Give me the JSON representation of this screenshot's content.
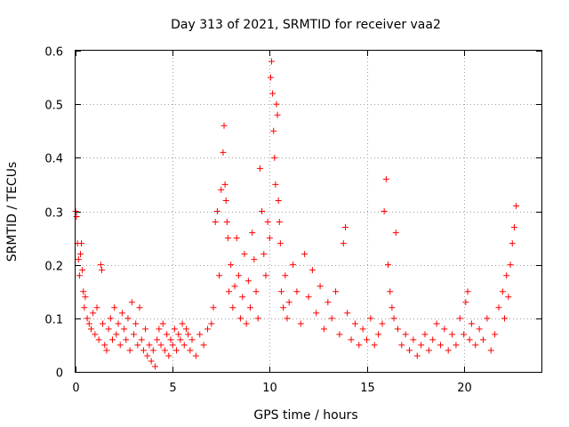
{
  "chart_data": {
    "type": "scatter",
    "title": "Day 313 of 2021, SRMTID for receiver vaa2",
    "xlabel": "GPS time / hours",
    "ylabel": "SRMTID / TECUs",
    "xlim": [
      0,
      24
    ],
    "ylim": [
      0,
      0.6
    ],
    "xticks": [
      0,
      5,
      10,
      15,
      20
    ],
    "xtick_labels": [
      "0",
      "5",
      "10",
      "15",
      "20"
    ],
    "yticks": [
      0,
      0.1,
      0.2,
      0.3,
      0.4,
      0.5,
      0.6
    ],
    "ytick_labels": [
      "0",
      "0.1",
      "0.2",
      "0.3",
      "0.4",
      "0.5",
      "0.6"
    ],
    "grid": true,
    "marker": "+",
    "color": "#ff0000",
    "series": [
      {
        "name": "SRMTID",
        "points": [
          [
            0.0,
            0.3
          ],
          [
            0.05,
            0.29
          ],
          [
            0.1,
            0.24
          ],
          [
            0.15,
            0.21
          ],
          [
            0.2,
            0.18
          ],
          [
            0.25,
            0.22
          ],
          [
            0.3,
            0.24
          ],
          [
            0.35,
            0.19
          ],
          [
            0.4,
            0.15
          ],
          [
            0.45,
            0.12
          ],
          [
            0.5,
            0.14
          ],
          [
            0.6,
            0.1
          ],
          [
            0.7,
            0.09
          ],
          [
            0.8,
            0.08
          ],
          [
            0.9,
            0.11
          ],
          [
            1.0,
            0.07
          ],
          [
            1.1,
            0.12
          ],
          [
            1.2,
            0.06
          ],
          [
            1.3,
            0.2
          ],
          [
            1.35,
            0.19
          ],
          [
            1.4,
            0.09
          ],
          [
            1.5,
            0.05
          ],
          [
            1.6,
            0.04
          ],
          [
            1.7,
            0.08
          ],
          [
            1.8,
            0.1
          ],
          [
            1.9,
            0.06
          ],
          [
            2.0,
            0.12
          ],
          [
            2.1,
            0.07
          ],
          [
            2.2,
            0.09
          ],
          [
            2.3,
            0.05
          ],
          [
            2.4,
            0.11
          ],
          [
            2.5,
            0.08
          ],
          [
            2.6,
            0.06
          ],
          [
            2.7,
            0.1
          ],
          [
            2.8,
            0.04
          ],
          [
            2.9,
            0.13
          ],
          [
            3.0,
            0.07
          ],
          [
            3.1,
            0.09
          ],
          [
            3.2,
            0.05
          ],
          [
            3.3,
            0.12
          ],
          [
            3.4,
            0.06
          ],
          [
            3.5,
            0.04
          ],
          [
            3.6,
            0.08
          ],
          [
            3.7,
            0.03
          ],
          [
            3.8,
            0.05
          ],
          [
            3.9,
            0.02
          ],
          [
            4.0,
            0.04
          ],
          [
            4.1,
            0.01
          ],
          [
            4.2,
            0.06
          ],
          [
            4.3,
            0.08
          ],
          [
            4.4,
            0.05
          ],
          [
            4.5,
            0.09
          ],
          [
            4.6,
            0.04
          ],
          [
            4.7,
            0.07
          ],
          [
            4.8,
            0.03
          ],
          [
            4.9,
            0.06
          ],
          [
            5.0,
            0.05
          ],
          [
            5.1,
            0.08
          ],
          [
            5.2,
            0.04
          ],
          [
            5.3,
            0.07
          ],
          [
            5.4,
            0.06
          ],
          [
            5.5,
            0.09
          ],
          [
            5.6,
            0.05
          ],
          [
            5.7,
            0.08
          ],
          [
            5.8,
            0.07
          ],
          [
            5.9,
            0.04
          ],
          [
            6.0,
            0.06
          ],
          [
            6.2,
            0.03
          ],
          [
            6.4,
            0.07
          ],
          [
            6.6,
            0.05
          ],
          [
            6.8,
            0.08
          ],
          [
            7.0,
            0.09
          ],
          [
            7.1,
            0.12
          ],
          [
            7.2,
            0.28
          ],
          [
            7.3,
            0.3
          ],
          [
            7.4,
            0.18
          ],
          [
            7.5,
            0.34
          ],
          [
            7.6,
            0.41
          ],
          [
            7.65,
            0.46
          ],
          [
            7.7,
            0.35
          ],
          [
            7.75,
            0.32
          ],
          [
            7.8,
            0.28
          ],
          [
            7.85,
            0.25
          ],
          [
            7.9,
            0.15
          ],
          [
            8.0,
            0.2
          ],
          [
            8.1,
            0.12
          ],
          [
            8.2,
            0.16
          ],
          [
            8.3,
            0.25
          ],
          [
            8.4,
            0.18
          ],
          [
            8.5,
            0.1
          ],
          [
            8.6,
            0.14
          ],
          [
            8.7,
            0.22
          ],
          [
            8.8,
            0.09
          ],
          [
            8.9,
            0.17
          ],
          [
            9.0,
            0.12
          ],
          [
            9.1,
            0.26
          ],
          [
            9.2,
            0.21
          ],
          [
            9.3,
            0.15
          ],
          [
            9.4,
            0.1
          ],
          [
            9.5,
            0.38
          ],
          [
            9.6,
            0.3
          ],
          [
            9.7,
            0.22
          ],
          [
            9.8,
            0.18
          ],
          [
            9.9,
            0.28
          ],
          [
            10.0,
            0.25
          ],
          [
            10.05,
            0.55
          ],
          [
            10.1,
            0.58
          ],
          [
            10.15,
            0.52
          ],
          [
            10.2,
            0.45
          ],
          [
            10.25,
            0.4
          ],
          [
            10.3,
            0.35
          ],
          [
            10.35,
            0.5
          ],
          [
            10.4,
            0.48
          ],
          [
            10.45,
            0.32
          ],
          [
            10.5,
            0.28
          ],
          [
            10.55,
            0.24
          ],
          [
            10.6,
            0.15
          ],
          [
            10.7,
            0.12
          ],
          [
            10.8,
            0.18
          ],
          [
            10.9,
            0.1
          ],
          [
            11.0,
            0.13
          ],
          [
            11.2,
            0.2
          ],
          [
            11.4,
            0.15
          ],
          [
            11.6,
            0.09
          ],
          [
            11.8,
            0.22
          ],
          [
            12.0,
            0.14
          ],
          [
            12.2,
            0.19
          ],
          [
            12.4,
            0.11
          ],
          [
            12.6,
            0.16
          ],
          [
            12.8,
            0.08
          ],
          [
            13.0,
            0.13
          ],
          [
            13.2,
            0.1
          ],
          [
            13.4,
            0.15
          ],
          [
            13.6,
            0.07
          ],
          [
            13.8,
            0.24
          ],
          [
            13.9,
            0.27
          ],
          [
            14.0,
            0.11
          ],
          [
            14.2,
            0.06
          ],
          [
            14.4,
            0.09
          ],
          [
            14.6,
            0.05
          ],
          [
            14.8,
            0.08
          ],
          [
            15.0,
            0.06
          ],
          [
            15.2,
            0.1
          ],
          [
            15.4,
            0.05
          ],
          [
            15.6,
            0.07
          ],
          [
            15.8,
            0.09
          ],
          [
            15.9,
            0.3
          ],
          [
            16.0,
            0.36
          ],
          [
            16.1,
            0.2
          ],
          [
            16.2,
            0.15
          ],
          [
            16.3,
            0.12
          ],
          [
            16.4,
            0.1
          ],
          [
            16.5,
            0.26
          ],
          [
            16.6,
            0.08
          ],
          [
            16.8,
            0.05
          ],
          [
            17.0,
            0.07
          ],
          [
            17.2,
            0.04
          ],
          [
            17.4,
            0.06
          ],
          [
            17.6,
            0.03
          ],
          [
            17.8,
            0.05
          ],
          [
            18.0,
            0.07
          ],
          [
            18.2,
            0.04
          ],
          [
            18.4,
            0.06
          ],
          [
            18.6,
            0.09
          ],
          [
            18.8,
            0.05
          ],
          [
            19.0,
            0.08
          ],
          [
            19.2,
            0.04
          ],
          [
            19.4,
            0.07
          ],
          [
            19.6,
            0.05
          ],
          [
            19.8,
            0.1
          ],
          [
            20.0,
            0.07
          ],
          [
            20.1,
            0.13
          ],
          [
            20.2,
            0.15
          ],
          [
            20.3,
            0.06
          ],
          [
            20.4,
            0.09
          ],
          [
            20.6,
            0.05
          ],
          [
            20.8,
            0.08
          ],
          [
            21.0,
            0.06
          ],
          [
            21.2,
            0.1
          ],
          [
            21.4,
            0.04
          ],
          [
            21.6,
            0.07
          ],
          [
            21.8,
            0.12
          ],
          [
            22.0,
            0.15
          ],
          [
            22.1,
            0.1
          ],
          [
            22.2,
            0.18
          ],
          [
            22.3,
            0.14
          ],
          [
            22.4,
            0.2
          ],
          [
            22.5,
            0.24
          ],
          [
            22.6,
            0.27
          ],
          [
            22.7,
            0.31
          ]
        ]
      }
    ]
  }
}
